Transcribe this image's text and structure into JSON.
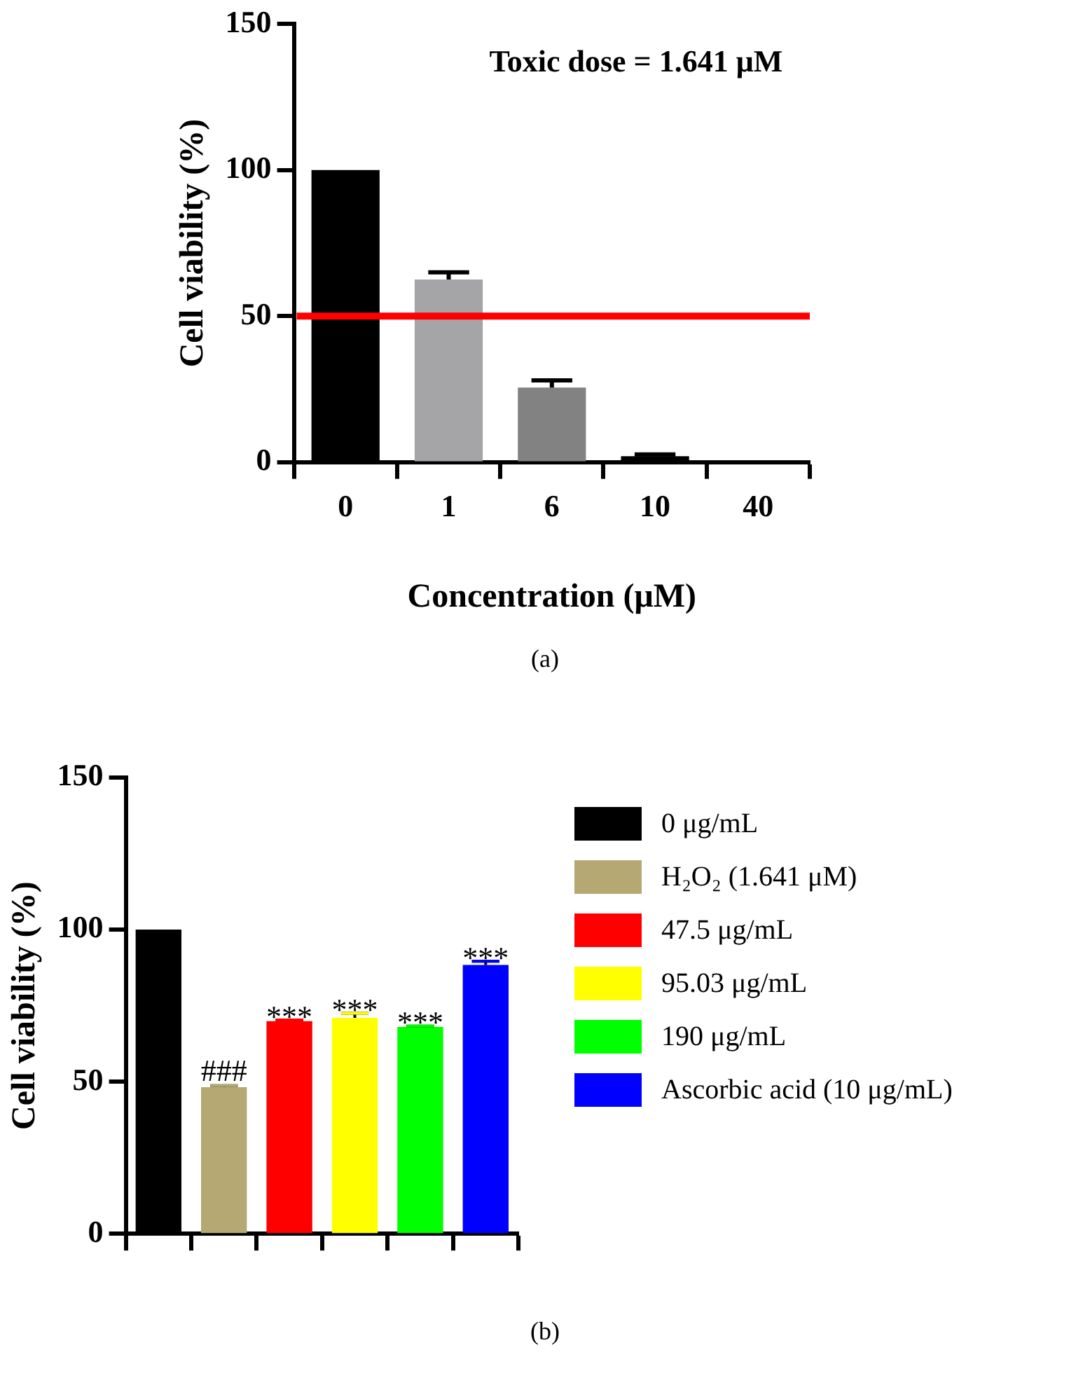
{
  "chart_data": [
    {
      "type": "bar",
      "xlabel": "Concentration (μM)",
      "ylabel": "Cell viability (%)",
      "categories": [
        "0",
        "1",
        "6",
        "10",
        "40"
      ],
      "values": [
        100,
        62.5,
        25.5,
        2,
        0
      ],
      "errors": [
        null,
        2.5,
        2.5,
        0.6,
        null
      ],
      "colors": [
        "#000000",
        "#a5a5a8",
        "#828282",
        "#000000",
        "#000000"
      ],
      "ylim": [
        0,
        150
      ],
      "yticks": [
        0,
        50,
        100,
        150
      ],
      "grid": false,
      "legend": false,
      "ref_lines": [
        {
          "axis": "y",
          "value": 50,
          "color": "#ff0000"
        }
      ],
      "annotations": [
        "Toxic dose = 1.641 μM",
        "(a)"
      ]
    },
    {
      "type": "bar",
      "ylabel": "Cell viability (%)",
      "categories": [
        null,
        null,
        null,
        null,
        null,
        null
      ],
      "series": [
        {
          "name": "0 μg/mL",
          "color": "#000000",
          "values": [
            100,
            null,
            null,
            null,
            null,
            null
          ]
        },
        {
          "name": "H₂O₂ (1.641 μM)",
          "color": "#b5a872",
          "values": [
            null,
            48.2,
            null,
            null,
            null,
            null
          ],
          "errors": [
            null,
            0.5,
            null,
            null,
            null,
            null
          ],
          "value_labels": [
            null,
            "###",
            null,
            null,
            null,
            null
          ]
        },
        {
          "name": "47.5 μg/mL",
          "color": "#ff0000",
          "values": [
            null,
            null,
            69.9,
            null,
            null,
            null
          ],
          "errors": [
            null,
            null,
            0.4,
            null,
            null,
            null
          ],
          "value_labels": [
            null,
            null,
            "***",
            null,
            null,
            null
          ]
        },
        {
          "name": "95.03 μg/mL",
          "color": "#ffff00",
          "values": [
            null,
            null,
            null,
            71,
            null,
            null
          ],
          "errors": [
            null,
            null,
            null,
            1.5,
            null,
            null
          ],
          "value_labels": [
            null,
            null,
            null,
            "***",
            null,
            null
          ]
        },
        {
          "name": "190 μg/mL",
          "color": "#00ff00",
          "values": [
            null,
            null,
            null,
            null,
            68,
            null
          ],
          "errors": [
            null,
            null,
            null,
            null,
            0.3,
            null
          ],
          "value_labels": [
            null,
            null,
            null,
            null,
            "***",
            null
          ]
        },
        {
          "name": "Ascorbic acid (10 μg/mL)",
          "color": "#0000ff",
          "values": [
            null,
            null,
            null,
            null,
            null,
            88.4
          ],
          "errors": [
            null,
            null,
            null,
            null,
            null,
            1.2
          ],
          "value_labels": [
            null,
            null,
            null,
            null,
            null,
            "***"
          ]
        }
      ],
      "ylim": [
        0,
        150
      ],
      "yticks": [
        0,
        50,
        100,
        150
      ],
      "grid": false,
      "legend": "right",
      "annotations": [
        "(b)"
      ]
    }
  ]
}
